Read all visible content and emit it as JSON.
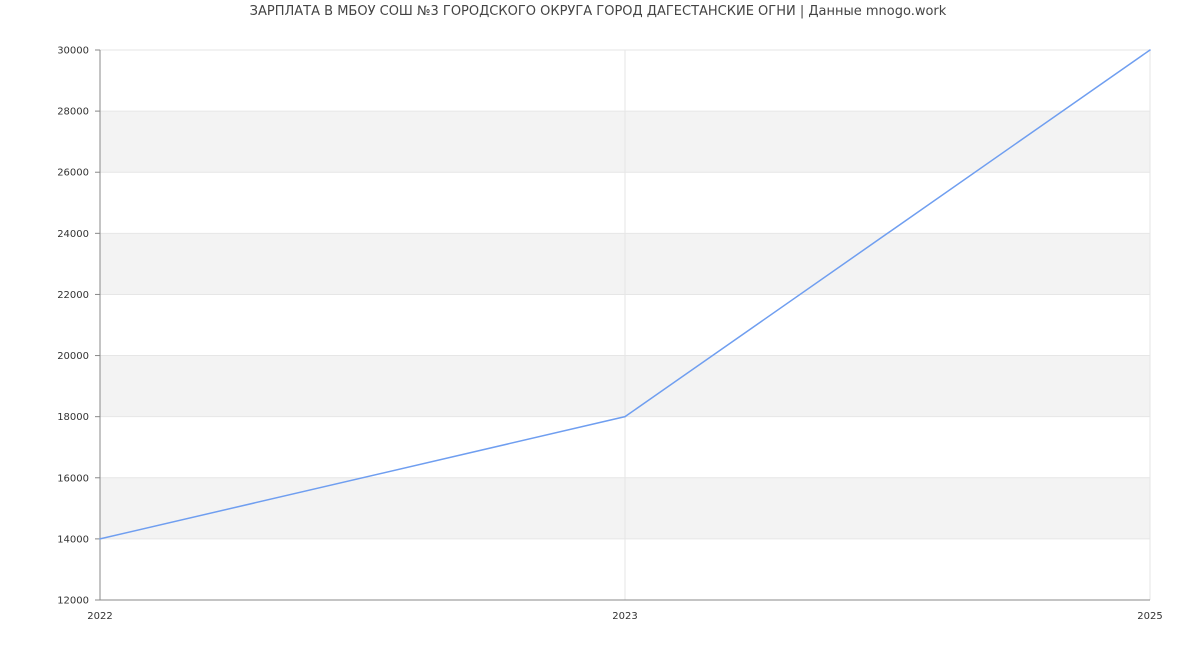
{
  "chart_data": {
    "type": "line",
    "title": "ЗАРПЛАТА В МБОУ СОШ №3 ГОРОДСКОГО ОКРУГА ГОРОД ДАГЕСТАНСКИЕ ОГНИ | Данные mnogo.work",
    "categories": [
      "2022",
      "2023",
      "2025"
    ],
    "values": [
      14000,
      18000,
      30000
    ],
    "xlabel": "",
    "ylabel": "",
    "ylim": [
      12000,
      30000
    ],
    "yticks": [
      12000,
      14000,
      16000,
      18000,
      20000,
      22000,
      24000,
      26000,
      28000,
      30000
    ],
    "grid": true,
    "alternating_bands": true,
    "colors": {
      "line": "#6f9ef0",
      "band": "#f3f3f3",
      "grid": "#e6e6e6",
      "axis": "#888888"
    }
  }
}
